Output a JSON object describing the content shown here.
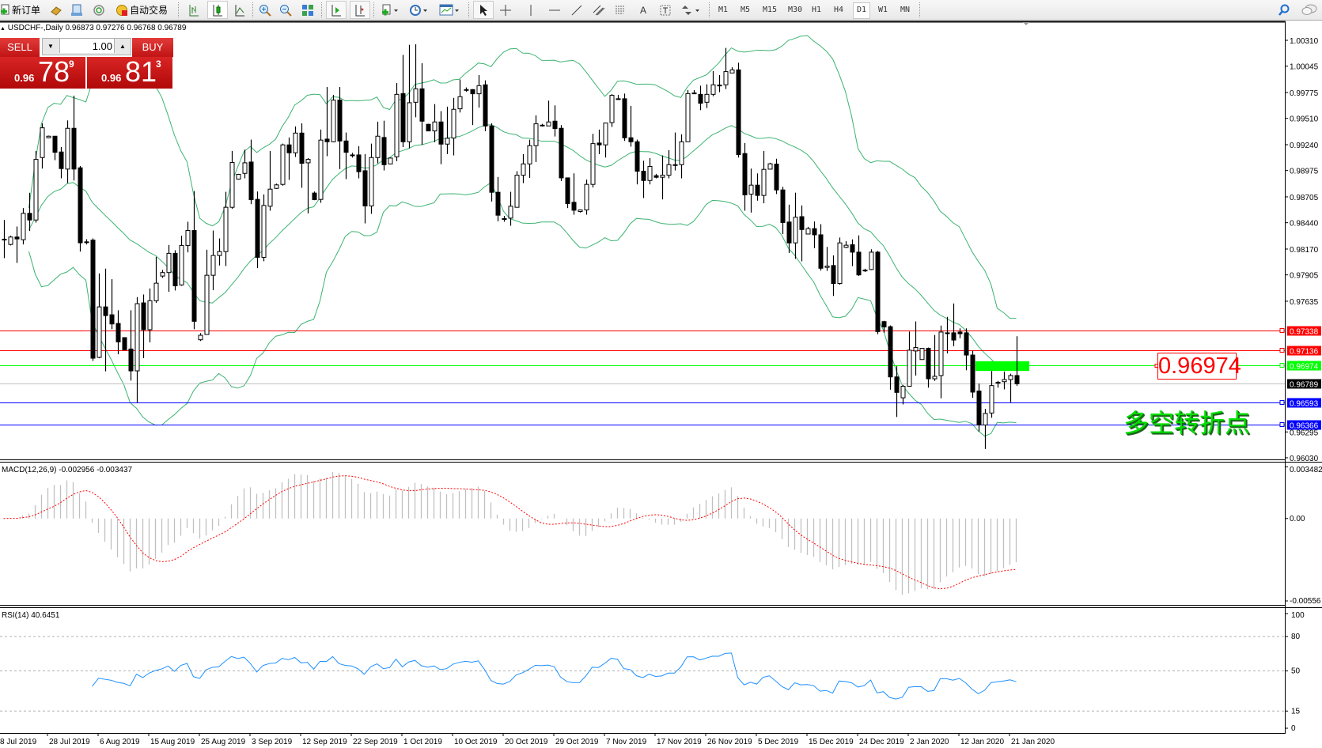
{
  "toolbar": {
    "new_order": "新订单",
    "auto_trading": "自动交易",
    "timeframes": [
      "M1",
      "M5",
      "M15",
      "M30",
      "H1",
      "H4",
      "D1",
      "W1",
      "MN"
    ],
    "active_timeframe": "D1",
    "tools_text_label": "A"
  },
  "chart_header": {
    "symbol": "USDCHF-,Daily",
    "ohlc": "0.96873 0.97276 0.96768 0.96789"
  },
  "trade_panel": {
    "sell_label": "SELL",
    "buy_label": "BUY",
    "lot": "1.00",
    "sell_price": {
      "prefix": "0.96",
      "big": "78",
      "sup": "9"
    },
    "buy_price": {
      "prefix": "0.96",
      "big": "81",
      "sup": "3"
    }
  },
  "annotations": {
    "price_box": "0.96974",
    "text": "多空转折点"
  },
  "chart_data": {
    "type": "candlestick",
    "symbol": "USDCHF-",
    "timeframe": "Daily",
    "price_ticks": [
      "1.00310",
      "1.00045",
      "0.99775",
      "0.99510",
      "0.99240",
      "0.98975",
      "0.98705",
      "0.98440",
      "0.98170",
      "0.97905",
      "0.97635",
      "0.96295",
      "0.96030"
    ],
    "horizontal_lines": [
      {
        "price": "0.97338",
        "color": "#ff0000",
        "label_bg": "#ff0000",
        "label_fg": "#ffffff"
      },
      {
        "price": "0.97136",
        "color": "#ff0000",
        "label_bg": "#ff0000",
        "label_fg": "#ffffff"
      },
      {
        "price": "0.96974",
        "color": "#00ff00",
        "label_bg": "#00ff00",
        "label_fg": "#ffffff"
      },
      {
        "price": "0.96789",
        "color": "#c0c0c0",
        "label_bg": "#000000",
        "label_fg": "#ffffff"
      },
      {
        "price": "0.96593",
        "color": "#0000ff",
        "label_bg": "#0000ff",
        "label_fg": "#ffffff"
      },
      {
        "price": "0.96366",
        "color": "#0000ff",
        "label_bg": "#0000ff",
        "label_fg": "#ffffff"
      }
    ],
    "rectangle": {
      "high": 0.9702,
      "low": 0.9692,
      "color": "#00ff00"
    },
    "bollinger": {
      "period": 20,
      "deviation": 2,
      "color": "#3cb371"
    },
    "bull_color": "#ffffff",
    "bear_color": "#000000",
    "candles": [
      [
        0.98266,
        0.98468,
        0.98077,
        0.98271
      ],
      [
        0.98217,
        0.98307,
        0.98207,
        0.98293
      ],
      [
        0.98293,
        0.98401,
        0.98028,
        0.98274
      ],
      [
        0.98266,
        0.9859,
        0.98217,
        0.98536
      ],
      [
        0.98536,
        0.98747,
        0.98355,
        0.98468
      ],
      [
        0.98468,
        0.99176,
        0.98441,
        0.99089
      ],
      [
        0.99108,
        0.99459,
        0.98995,
        0.99413
      ],
      [
        0.99311,
        0.99333,
        0.99306,
        0.99327
      ],
      [
        0.99327,
        0.99327,
        0.99081,
        0.99162
      ],
      [
        0.99165,
        0.99216,
        0.98895,
        0.98995
      ],
      [
        0.9899,
        0.99489,
        0.98846,
        0.99408
      ],
      [
        0.99408,
        0.99743,
        0.98873,
        0.9899
      ],
      [
        0.99003,
        0.99022,
        0.98144,
        0.98234
      ],
      [
        0.98244,
        0.98271,
        0.98217,
        0.98244
      ],
      [
        0.98261,
        0.98279,
        0.97024,
        0.97051
      ],
      [
        0.97059,
        0.9792,
        0.97051,
        0.97577
      ],
      [
        0.97577,
        0.97969,
        0.96916,
        0.97488
      ],
      [
        0.97496,
        0.97861,
        0.97348,
        0.97402
      ],
      [
        0.97407,
        0.97542,
        0.97091,
        0.97218
      ],
      [
        0.97262,
        0.97262,
        0.97137,
        0.97137
      ],
      [
        0.97145,
        0.97542,
        0.96821,
        0.96921
      ],
      [
        0.96921,
        0.97677,
        0.96597,
        0.9761
      ],
      [
        0.97618,
        0.97704,
        0.97051,
        0.97343
      ],
      [
        0.97343,
        0.97766,
        0.97213,
        0.9764
      ],
      [
        0.9764,
        0.9809,
        0.97618,
        0.9782
      ],
      [
        0.97893,
        0.97956,
        0.97874,
        0.97929
      ],
      [
        0.97929,
        0.98212,
        0.97731,
        0.98126
      ],
      [
        0.98126,
        0.98158,
        0.97745,
        0.97793
      ],
      [
        0.97802,
        0.98307,
        0.97793,
        0.98207
      ],
      [
        0.98207,
        0.9845,
        0.98136,
        0.9836
      ],
      [
        0.9836,
        0.98765,
        0.97348,
        0.97429
      ],
      [
        0.9724,
        0.97308,
        0.97227,
        0.97286
      ],
      [
        0.97294,
        0.98163,
        0.97294,
        0.97901
      ],
      [
        0.97901,
        0.9836,
        0.97748,
        0.98104
      ],
      [
        0.98104,
        0.98279,
        0.98001,
        0.98144
      ],
      [
        0.98144,
        0.98757,
        0.97996,
        0.98598
      ],
      [
        0.98598,
        0.99176,
        0.98582,
        0.99057
      ],
      [
        0.98887,
        0.98941,
        0.98882,
        0.98936
      ],
      [
        0.98946,
        0.99189,
        0.98895,
        0.99054
      ],
      [
        0.99062,
        0.99292,
        0.9863,
        0.98676
      ],
      [
        0.98679,
        0.9876,
        0.97974,
        0.98085
      ],
      [
        0.98085,
        0.9873,
        0.98045,
        0.98617
      ],
      [
        0.98609,
        0.99176,
        0.98563,
        0.98784
      ],
      [
        0.98792,
        0.98841,
        0.98787,
        0.98828
      ],
      [
        0.98833,
        0.99251,
        0.9882,
        0.99238
      ],
      [
        0.99238,
        0.99314,
        0.98879,
        0.99157
      ],
      [
        0.99157,
        0.99427,
        0.99114,
        0.99359
      ],
      [
        0.99359,
        0.99459,
        0.98798,
        0.99049
      ],
      [
        0.99054,
        0.99103,
        0.98536,
        0.99089
      ],
      [
        0.98744,
        0.9876,
        0.98671,
        0.98676
      ],
      [
        0.98679,
        0.99395,
        0.98644,
        0.99287
      ],
      [
        0.99297,
        0.99832,
        0.99122,
        0.9927
      ],
      [
        0.9927,
        0.99751,
        0.99265,
        0.99697
      ],
      [
        0.99697,
        0.99832,
        0.9899,
        0.99278
      ],
      [
        0.99278,
        0.99365,
        0.98887,
        0.99162
      ],
      [
        0.99135,
        0.99157,
        0.99108,
        0.99135
      ],
      [
        0.99135,
        0.99224,
        0.98895,
        0.98963
      ],
      [
        0.98973,
        0.99143,
        0.98433,
        0.98612
      ],
      [
        0.98612,
        0.99251,
        0.98531,
        0.99108
      ],
      [
        0.99108,
        0.99476,
        0.99049,
        0.99327
      ],
      [
        0.99314,
        0.99486,
        0.98976,
        0.99035
      ],
      [
        0.99043,
        0.99108,
        0.9904,
        0.99103
      ],
      [
        0.99116,
        0.99872,
        0.99071,
        0.99756
      ],
      [
        0.99764,
        1.00161,
        0.99216,
        0.9927
      ],
      [
        0.9927,
        1.00264,
        0.99203,
        0.9967
      ],
      [
        0.99675,
        1.0027,
        0.99521,
        0.99813
      ],
      [
        0.99813,
        1.00075,
        0.99238,
        0.99481
      ],
      [
        0.99449,
        0.99454,
        0.99378,
        0.99381
      ],
      [
        0.99381,
        0.99656,
        0.99265,
        0.99473
      ],
      [
        0.99473,
        0.99584,
        0.9904,
        0.99246
      ],
      [
        0.99246,
        0.9963,
        0.99143,
        0.99306
      ],
      [
        0.99308,
        0.9972,
        0.9913,
        0.99603
      ],
      [
        0.99608,
        0.99908,
        0.9957,
        0.99732
      ],
      [
        0.99805,
        0.99827,
        0.99783,
        0.99805
      ],
      [
        0.99805,
        0.9981,
        0.99441,
        0.99762
      ],
      [
        0.99762,
        0.99954,
        0.99621,
        0.99845
      ],
      [
        0.99854,
        0.999,
        0.99378,
        0.99432
      ],
      [
        0.99432,
        0.99459,
        0.98657,
        0.98752
      ],
      [
        0.98752,
        0.98909,
        0.98455,
        0.98517
      ],
      [
        0.98482,
        0.98509,
        0.9845,
        0.98482
      ],
      [
        0.98487,
        0.98757,
        0.98409,
        0.98609
      ],
      [
        0.98598,
        0.98968,
        0.98598,
        0.98927
      ],
      [
        0.98927,
        0.99143,
        0.98846,
        0.99043
      ],
      [
        0.99043,
        0.99292,
        0.989,
        0.9923
      ],
      [
        0.9923,
        0.9954,
        0.99062,
        0.99454
      ],
      [
        0.9944,
        0.99454,
        0.99427,
        0.9944
      ],
      [
        0.99432,
        0.99692,
        0.99432,
        0.99473
      ],
      [
        0.99481,
        0.99643,
        0.99324,
        0.99405
      ],
      [
        0.99408,
        0.99441,
        0.98868,
        0.989
      ],
      [
        0.989,
        0.989,
        0.9859,
        0.98636
      ],
      [
        0.98649,
        0.98946,
        0.98522,
        0.98568
      ],
      [
        0.98555,
        0.98576,
        0.98544,
        0.98571
      ],
      [
        0.98571,
        0.98882,
        0.98522,
        0.98833
      ],
      [
        0.98833,
        0.99351,
        0.98801,
        0.99251
      ],
      [
        0.99257,
        0.99395,
        0.99143,
        0.99238
      ],
      [
        0.99238,
        0.99467,
        0.99108,
        0.99462
      ],
      [
        0.99467,
        0.99759,
        0.99422,
        0.99746
      ],
      [
        0.99711,
        0.99751,
        0.99711,
        0.99711
      ],
      [
        0.99711,
        0.99764,
        0.99278,
        0.99311
      ],
      [
        0.99311,
        0.99638,
        0.9922,
        0.9927
      ],
      [
        0.9927,
        0.99292,
        0.98833,
        0.98968
      ],
      [
        0.98968,
        0.99076,
        0.98693,
        0.98873
      ],
      [
        0.98873,
        0.99103,
        0.98833,
        0.99017
      ],
      [
        0.98922,
        0.98941,
        0.98895,
        0.98906
      ],
      [
        0.98906,
        0.9913,
        0.98679,
        0.98927
      ],
      [
        0.98927,
        0.99184,
        0.98895,
        0.99035
      ],
      [
        0.99035,
        0.99365,
        0.98976,
        0.99035
      ],
      [
        0.99035,
        0.99346,
        0.98895,
        0.9927
      ],
      [
        0.9927,
        0.998,
        0.9927,
        0.99764
      ],
      [
        0.9977,
        0.998,
        0.99759,
        0.9977
      ],
      [
        0.99756,
        0.99845,
        0.99594,
        0.99665
      ],
      [
        0.99675,
        0.99859,
        0.99616,
        0.99756
      ],
      [
        0.99756,
        0.99994,
        0.99737,
        0.99854
      ],
      [
        0.99851,
        0.99954,
        0.99778,
        0.99851
      ],
      [
        0.99854,
        1.00232,
        0.9981,
        0.99989
      ],
      [
        0.99975,
        1.00034,
        0.99975,
        1.00007
      ],
      [
        1.00007,
        1.0008,
        0.99108,
        0.99138
      ],
      [
        0.99149,
        0.99257,
        0.98563,
        0.98725
      ],
      [
        0.98733,
        0.98995,
        0.98544,
        0.98825
      ],
      [
        0.98825,
        0.98946,
        0.98666,
        0.9872
      ],
      [
        0.9872,
        0.99176,
        0.98639,
        0.98987
      ],
      [
        0.98989,
        0.99055,
        0.98989,
        0.99044
      ],
      [
        0.99041,
        0.99096,
        0.98734,
        0.98776
      ],
      [
        0.98776,
        0.98808,
        0.98324,
        0.98442
      ],
      [
        0.98447,
        0.98625,
        0.98129,
        0.98233
      ],
      [
        0.98233,
        0.98748,
        0.98069,
        0.98496
      ],
      [
        0.98502,
        0.98617,
        0.98044,
        0.9837
      ],
      [
        0.98324,
        0.98398,
        0.98324,
        0.98379
      ],
      [
        0.98379,
        0.98453,
        0.98179,
        0.98316
      ],
      [
        0.98316,
        0.98425,
        0.97949,
        0.97973
      ],
      [
        0.97982,
        0.98192,
        0.97946,
        0.97995
      ],
      [
        0.98001,
        0.98105,
        0.97689,
        0.97817
      ],
      [
        0.97817,
        0.98288,
        0.97804,
        0.98233
      ],
      [
        0.98187,
        0.9825,
        0.98179,
        0.98209
      ],
      [
        0.98214,
        0.98269,
        0.97995,
        0.98138
      ],
      [
        0.98138,
        0.9831,
        0.97894,
        0.97905
      ],
      [
        0.97954,
        0.97968,
        0.97935,
        0.97954
      ],
      [
        0.9796,
        0.98168,
        0.97954,
        0.98138
      ],
      [
        0.98138,
        0.98151,
        0.97297,
        0.97324
      ],
      [
        0.97426,
        0.97434,
        0.97311,
        0.97371
      ],
      [
        0.97374,
        0.97387,
        0.96728,
        0.96859
      ],
      [
        0.96859,
        0.96969,
        0.96448,
        0.967
      ],
      [
        0.96645,
        0.96777,
        0.96577,
        0.96763
      ],
      [
        0.96763,
        0.97324,
        0.96758,
        0.97133
      ],
      [
        0.97125,
        0.97428,
        0.96873,
        0.9716
      ],
      [
        0.97037,
        0.97152,
        0.97037,
        0.97152
      ],
      [
        0.97152,
        0.9716,
        0.96749,
        0.9684
      ],
      [
        0.9684,
        0.97289,
        0.96818,
        0.96865
      ],
      [
        0.96873,
        0.97385,
        0.9664,
        0.97319
      ],
      [
        0.97311,
        0.97475,
        0.971,
        0.97311
      ],
      [
        0.97311,
        0.97612,
        0.97174,
        0.97237
      ],
      [
        0.97319,
        0.97357,
        0.97256,
        0.97302
      ],
      [
        0.97311,
        0.97357,
        0.96927,
        0.97083
      ],
      [
        0.97083,
        0.97127,
        0.96645,
        0.96703
      ],
      [
        0.96714,
        0.96791,
        0.96298,
        0.96366
      ],
      [
        0.96366,
        0.96531,
        0.9612,
        0.96484
      ],
      [
        0.96489,
        0.96919,
        0.9644,
        0.9677
      ],
      [
        0.96804,
        0.96818,
        0.96749,
        0.96804
      ],
      [
        0.9681,
        0.96914,
        0.96731,
        0.96832
      ],
      [
        0.96832,
        0.96892,
        0.96599,
        0.96873
      ],
      [
        0.96873,
        0.97276,
        0.96768,
        0.96789
      ]
    ],
    "date_labels": [
      "8 Jul 2019",
      "28 Jul 2019",
      "6 Aug 2019",
      "15 Aug 2019",
      "25 Aug 2019",
      "3 Sep 2019",
      "12 Sep 2019",
      "22 Sep 2019",
      "1 Oct 2019",
      "10 Oct 2019",
      "20 Oct 2019",
      "29 Oct 2019",
      "7 Nov 2019",
      "17 Nov 2019",
      "26 Nov 2019",
      "5 Dec 2019",
      "15 Dec 2019",
      "24 Dec 2019",
      "2 Jan 2020",
      "12 Jan 2020",
      "21 Jan 2020"
    ],
    "macd": {
      "label": "MACD(12,26,9) -0.002956 -0.003437",
      "ticks": [
        "0.003482",
        "0.00",
        "-0.00556"
      ],
      "range": [
        -0.00556,
        0.003482
      ],
      "histogram_color": "#c0c0c0",
      "signal_color": "#ff0000"
    },
    "rsi": {
      "label": "RSI(14) 40.6451",
      "ticks": [
        "100",
        "80",
        "50",
        "15",
        "0"
      ],
      "levels": [
        80,
        50,
        15
      ],
      "range": [
        0,
        100
      ],
      "color": "#1e90ff"
    }
  }
}
